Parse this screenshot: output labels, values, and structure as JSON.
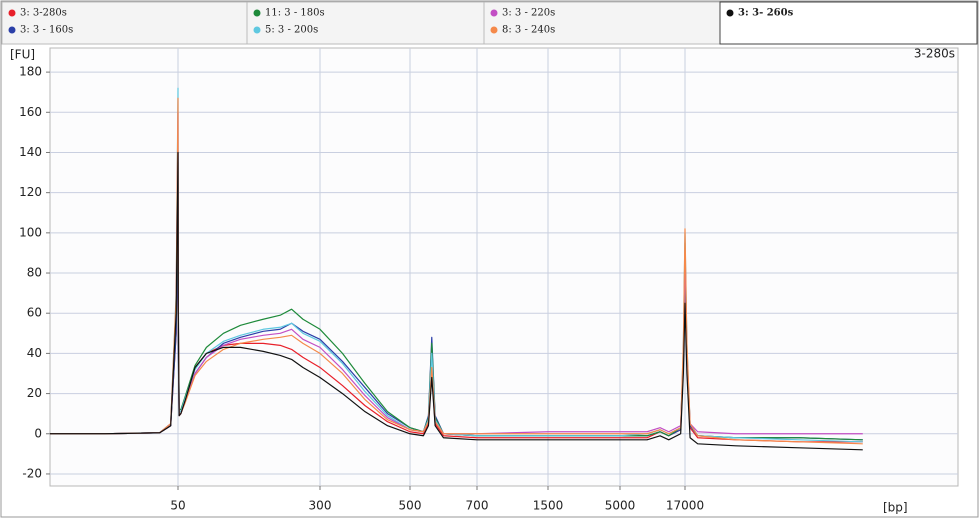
{
  "chart_data": {
    "type": "line",
    "y_label": "[FU]",
    "x_label": "[bp]",
    "annotation": "3-280s",
    "x": [
      15,
      30,
      45,
      48,
      49.5,
      50,
      50.5,
      52,
      55,
      62,
      80,
      100,
      130,
      160,
      200,
      230,
      250,
      270,
      300,
      350,
      400,
      450,
      500,
      540,
      555,
      565,
      575,
      600,
      700,
      1500,
      5000,
      10000,
      12400,
      14000,
      16200,
      16700,
      17000,
      17300,
      17800,
      19000,
      25000,
      35000,
      45000
    ],
    "series": [
      {
        "name": "3: 3-280s",
        "color": "#e8202a",
        "values": [
          0,
          0,
          0.5,
          4,
          50,
          115,
          50,
          9,
          10,
          16,
          33,
          40,
          44,
          45,
          45,
          44,
          42,
          38,
          33,
          24,
          14,
          6,
          1,
          0,
          5,
          30,
          5,
          -1,
          -2,
          -2,
          -2,
          -2,
          1,
          -1,
          2,
          38,
          85,
          38,
          3,
          -2,
          -3,
          -4,
          -4
        ]
      },
      {
        "name": "3: 3 - 160s",
        "color": "#2b3fa8",
        "values": [
          0,
          0,
          0.5,
          4,
          50,
          95,
          40,
          10,
          10,
          16,
          30,
          38,
          45,
          48,
          51,
          52,
          55,
          51,
          47,
          36,
          23,
          10,
          3,
          1,
          9,
          48,
          9,
          0,
          -1,
          -1,
          -1,
          -1,
          1,
          -1,
          2,
          35,
          80,
          35,
          4,
          -1,
          -2,
          -2,
          -3
        ]
      },
      {
        "name": "11: 3 - 180s",
        "color": "#1e8a3a",
        "values": [
          0,
          0,
          0.5,
          5,
          60,
          135,
          60,
          12,
          12,
          18,
          34,
          43,
          50,
          54,
          57,
          59,
          62,
          57,
          52,
          40,
          25,
          11,
          3,
          1,
          8,
          45,
          8,
          0,
          -1,
          -1,
          -1,
          -1,
          1,
          -1,
          3,
          40,
          95,
          40,
          5,
          -1,
          -2,
          -2,
          -3
        ]
      },
      {
        "name": "5: 3 - 200s",
        "color": "#5fc8e0",
        "values": [
          0,
          0,
          0.5,
          5,
          70,
          172,
          70,
          11,
          11,
          17,
          32,
          40,
          46,
          49,
          52,
          53,
          55,
          50,
          46,
          35,
          21,
          9,
          2,
          1,
          7,
          40,
          7,
          0,
          -1,
          -1,
          -1,
          0,
          2,
          0,
          3,
          45,
          100,
          45,
          5,
          -1,
          -2,
          -3,
          -4
        ]
      },
      {
        "name": "3: 3 - 220s",
        "color": "#c24fc4",
        "values": [
          0,
          0,
          0.5,
          5,
          65,
          160,
          65,
          10,
          10,
          16,
          30,
          38,
          44,
          47,
          49,
          50,
          52,
          47,
          43,
          32,
          19,
          8,
          2,
          1,
          6,
          32,
          6,
          0,
          0,
          1,
          1,
          1,
          3,
          1,
          4,
          40,
          90,
          40,
          5,
          1,
          0,
          0,
          0
        ]
      },
      {
        "name": "8: 3 - 240s",
        "color": "#f5894a",
        "values": [
          0,
          0,
          0.5,
          5,
          68,
          167,
          68,
          10,
          10,
          15,
          29,
          36,
          42,
          45,
          47,
          48,
          49,
          45,
          40,
          30,
          17,
          7,
          2,
          1,
          6,
          33,
          6,
          0,
          0,
          0,
          0,
          0,
          2,
          0,
          3,
          45,
          102,
          45,
          5,
          -1,
          -3,
          -4,
          -5
        ]
      },
      {
        "name": "3: 3- 260s",
        "color": "#111111",
        "values": [
          0,
          0,
          0.5,
          4,
          60,
          140,
          60,
          9,
          10,
          16,
          33,
          40,
          43,
          43,
          41,
          39,
          37,
          33,
          28,
          20,
          11,
          4,
          0,
          -1,
          4,
          28,
          4,
          -2,
          -3,
          -3,
          -3,
          -3,
          -1,
          -3,
          0,
          30,
          65,
          30,
          -2,
          -5,
          -6,
          -7,
          -8
        ]
      }
    ],
    "xlim": [
      15,
      60000
    ],
    "xticks": [
      50,
      300,
      500,
      700,
      1500,
      5000,
      17000
    ],
    "ylim": [
      -26,
      192
    ],
    "yticks": [
      -20,
      0,
      20,
      40,
      60,
      80,
      100,
      120,
      140,
      160,
      180
    ],
    "grid": true
  }
}
